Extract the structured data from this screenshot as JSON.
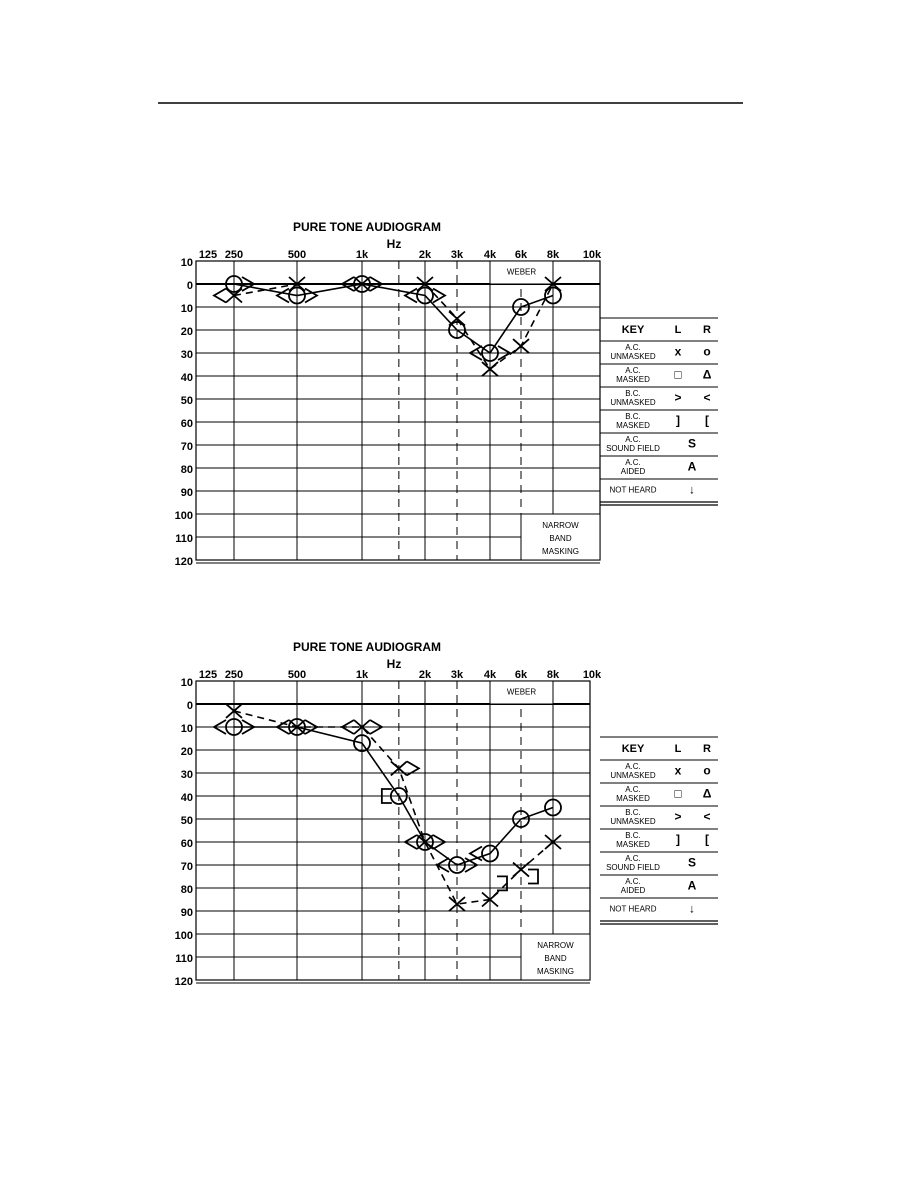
{
  "chart_data": [
    {
      "type": "audiogram",
      "title": "PURE TONE AUDIOGRAM",
      "x_label": "Hz",
      "xticks": [
        125,
        250,
        500,
        {
          "value": 1000,
          "label": "1k"
        },
        {
          "value": 2000,
          "label": "2k"
        },
        {
          "value": 3000,
          "label": "3k"
        },
        {
          "value": 4000,
          "label": "4k"
        },
        {
          "value": 6000,
          "label": "6k"
        },
        {
          "value": 8000,
          "label": "8k"
        },
        {
          "value": 10000,
          "label": "10k"
        }
      ],
      "xgrid": [
        250,
        500,
        1000,
        2000,
        4000,
        8000
      ],
      "xgrid_dashed": [
        1500,
        3000,
        6000
      ],
      "ylim": [
        -10,
        120
      ],
      "y_inverted": true,
      "yticks": [
        {
          "value": -10,
          "label": "10"
        },
        0,
        10,
        20,
        30,
        40,
        50,
        60,
        70,
        80,
        90,
        100,
        110,
        120
      ],
      "weber_label": "WEBER",
      "masking_label": [
        "NARROW",
        "BAND",
        "MASKING"
      ],
      "series": [
        {
          "marker": "o",
          "line": "solid",
          "color": "#000000",
          "x": [
            250,
            500,
            1000,
            2000,
            3000,
            4000,
            6000,
            8000
          ],
          "values": [
            0,
            5,
            0,
            5,
            20,
            30,
            10,
            5
          ]
        },
        {
          "marker": "x",
          "line": "dashed",
          "color": "#000000",
          "x": [
            250,
            500,
            1000,
            2000,
            3000,
            4000,
            6000,
            8000
          ],
          "values": [
            5,
            0,
            0,
            0,
            15,
            37,
            27,
            0
          ]
        },
        {
          "marker": ">",
          "line": "none",
          "color": "#000000",
          "x": [
            250,
            500,
            1000,
            2000,
            4000
          ],
          "values": [
            0,
            5,
            0,
            5,
            30
          ]
        },
        {
          "marker": "<",
          "line": "none",
          "color": "#000000",
          "x": [
            250,
            500,
            1000,
            2000,
            4000
          ],
          "values": [
            5,
            5,
            0,
            5,
            30
          ]
        }
      ],
      "key": {
        "header": [
          "KEY",
          "L",
          "R"
        ],
        "rows": [
          {
            "label": [
              "A.C.",
              "UNMASKED"
            ],
            "left": "x",
            "right": "o"
          },
          {
            "label": [
              "A.C.",
              "MASKED"
            ],
            "left": "□",
            "right": "Δ"
          },
          {
            "label": [
              "B.C.",
              "UNMASKED"
            ],
            "left": ">",
            "right": "<"
          },
          {
            "label": [
              "B.C.",
              "MASKED"
            ],
            "left": "]",
            "right": "["
          },
          {
            "label": [
              "A.C.",
              "SOUND FIELD"
            ],
            "both": "S"
          },
          {
            "label": [
              "A.C.",
              "AIDED"
            ],
            "both": "A"
          },
          {
            "label": [
              "NOT HEARD"
            ],
            "both": "↓"
          }
        ]
      }
    },
    {
      "type": "audiogram",
      "title": "PURE TONE AUDIOGRAM",
      "x_label": "Hz",
      "xticks": [
        125,
        250,
        500,
        {
          "value": 1000,
          "label": "1k"
        },
        {
          "value": 2000,
          "label": "2k"
        },
        {
          "value": 3000,
          "label": "3k"
        },
        {
          "value": 4000,
          "label": "4k"
        },
        {
          "value": 6000,
          "label": "6k"
        },
        {
          "value": 8000,
          "label": "8k"
        },
        {
          "value": 10000,
          "label": "10k"
        }
      ],
      "xgrid": [
        250,
        500,
        1000,
        2000,
        4000,
        8000
      ],
      "xgrid_dashed": [
        1500,
        3000,
        6000
      ],
      "ylim": [
        -10,
        120
      ],
      "y_inverted": true,
      "yticks": [
        {
          "value": -10,
          "label": "10"
        },
        0,
        10,
        20,
        30,
        40,
        50,
        60,
        70,
        80,
        90,
        100,
        110,
        120
      ],
      "weber_label": "WEBER",
      "masking_label": [
        "NARROW",
        "BAND",
        "MASKING"
      ],
      "series": [
        {
          "marker": "o",
          "line": "solid",
          "color": "#000000",
          "x": [
            250,
            500,
            1000,
            1500,
            2000,
            3000,
            4000,
            6000,
            8000
          ],
          "values": [
            10,
            10,
            17,
            40,
            60,
            70,
            65,
            50,
            45
          ]
        },
        {
          "marker": "x",
          "line": "dashed",
          "color": "#000000",
          "x": [
            250,
            500,
            1000,
            1500,
            2000,
            3000,
            4000,
            6000,
            8000
          ],
          "values": [
            3,
            10,
            10,
            28,
            60,
            87,
            85,
            72,
            60
          ]
        },
        {
          "marker": ">",
          "line": "none",
          "color": "#000000",
          "x": [
            250,
            500,
            1000,
            1500,
            2000,
            3000
          ],
          "values": [
            10,
            10,
            10,
            28,
            60,
            70
          ]
        },
        {
          "marker": "<",
          "line": "none",
          "color": "#000000",
          "x": [
            250,
            500,
            1000,
            2000,
            3000,
            4000
          ],
          "values": [
            10,
            10,
            10,
            60,
            70,
            65
          ]
        },
        {
          "marker": "[",
          "line": "none",
          "color": "#000000",
          "x": [
            1500
          ],
          "values": [
            40
          ]
        },
        {
          "marker": "]",
          "line": "none",
          "color": "#000000",
          "x": [
            4000,
            6000
          ],
          "values": [
            78,
            75
          ]
        }
      ],
      "key": {
        "header": [
          "KEY",
          "L",
          "R"
        ],
        "rows": [
          {
            "label": [
              "A.C.",
              "UNMASKED"
            ],
            "left": "x",
            "right": "o"
          },
          {
            "label": [
              "A.C.",
              "MASKED"
            ],
            "left": "□",
            "right": "Δ"
          },
          {
            "label": [
              "B.C.",
              "UNMASKED"
            ],
            "left": ">",
            "right": "<"
          },
          {
            "label": [
              "B.C.",
              "MASKED"
            ],
            "left": "]",
            "right": "["
          },
          {
            "label": [
              "A.C.",
              "SOUND FIELD"
            ],
            "both": "S"
          },
          {
            "label": [
              "A.C.",
              "AIDED"
            ],
            "both": "A"
          },
          {
            "label": [
              "NOT HEARD"
            ],
            "both": "↓"
          }
        ]
      }
    }
  ]
}
